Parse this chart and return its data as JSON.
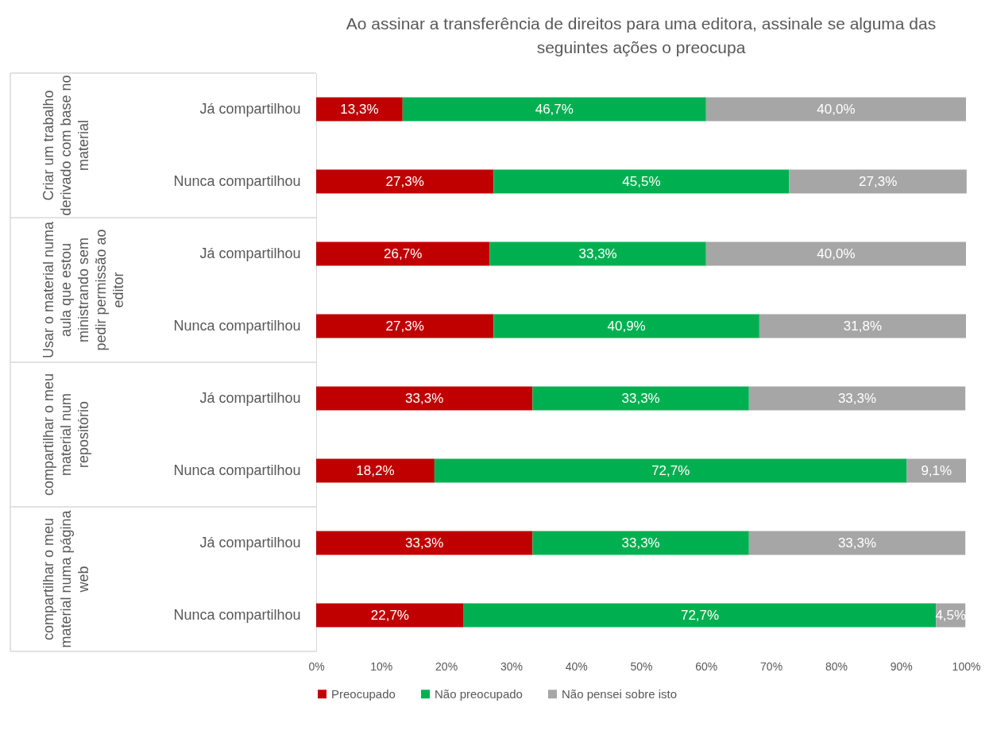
{
  "chart_data": {
    "type": "bar",
    "orientation": "horizontal",
    "stacked": true,
    "title": "Ao assinar a transferência de direitos para uma editora, assinale se alguma das seguintes ações o preocupa",
    "categories": [
      "Já compartilhou",
      "Nunca compartilhou",
      "Já compartilhou",
      "Nunca compartilhou",
      "Já compartilhou",
      "Nunca compartilhou",
      "Já compartilhou",
      "Nunca compartilhou"
    ],
    "annotations": [
      "Criar um trabalho derivado com base no material",
      "Usar o material numa aula que estou ministrando sem pedir permissão ao editor",
      "compartilhar o meu material num repositório",
      "compartilhar o meu material numa página web"
    ],
    "series": [
      {
        "name": "Preocupado",
        "color": "#c00000",
        "values": [
          13.3,
          27.3,
          26.7,
          27.3,
          33.3,
          18.2,
          33.3,
          22.7
        ],
        "value_labels": [
          "13,3%",
          "27,3%",
          "26,7%",
          "27,3%",
          "33,3%",
          "18,2%",
          "33,3%",
          "22,7%"
        ]
      },
      {
        "name": "Não preocupado",
        "color": "#00b050",
        "values": [
          46.7,
          45.5,
          33.3,
          40.9,
          33.3,
          72.7,
          33.3,
          72.7
        ],
        "value_labels": [
          "46,7%",
          "45,5%",
          "33,3%",
          "40,9%",
          "33,3%",
          "72,7%",
          "33,3%",
          "72,7%"
        ]
      },
      {
        "name": "Não pensei sobre isto",
        "color": "#a6a6a6",
        "values": [
          40.0,
          27.3,
          40.0,
          31.8,
          33.3,
          9.1,
          33.3,
          4.5
        ],
        "value_labels": [
          "40,0%",
          "27,3%",
          "40,0%",
          "31,8%",
          "33,3%",
          "9,1%",
          "33,3%",
          "4,5%"
        ]
      }
    ],
    "xlim": [
      0,
      100
    ],
    "xticks": [
      {
        "value": 0,
        "label": "0%"
      },
      {
        "value": 10,
        "label": "10%"
      },
      {
        "value": 20,
        "label": "20%"
      },
      {
        "value": 30,
        "label": "30%"
      },
      {
        "value": 40,
        "label": "40%"
      },
      {
        "value": 50,
        "label": "50%"
      },
      {
        "value": 60,
        "label": "60%"
      },
      {
        "value": 70,
        "label": "70%"
      },
      {
        "value": 80,
        "label": "80%"
      },
      {
        "value": 90,
        "label": "90%"
      },
      {
        "value": 100,
        "label": "100%"
      }
    ],
    "grid": false,
    "legend": "bottom"
  }
}
